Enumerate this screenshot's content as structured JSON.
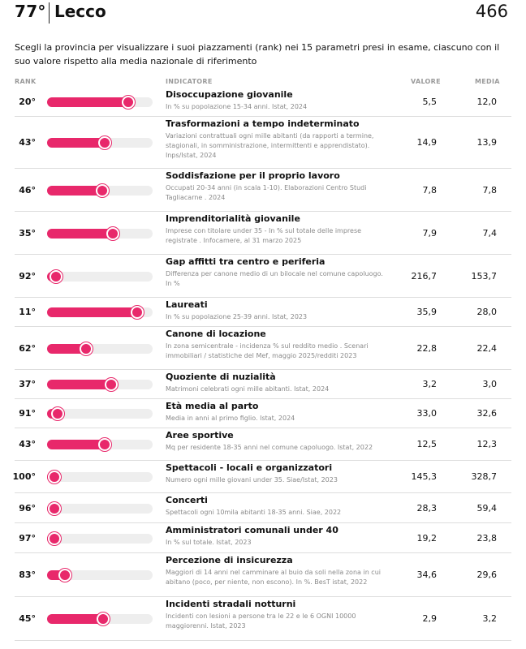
{
  "header": {
    "rank": "77°",
    "city": "Lecco",
    "score": "466"
  },
  "intro": "Scegli la provincia per visualizzare i suoi piazzamenti (rank) nei 15 parametri presi in esame, ciascuno con il suo valore rispetto alla media nazionale di riferimento",
  "columns": {
    "rank": "RANK",
    "indicator": "INDICATORE",
    "value": "VALORE",
    "average": "MEDIA"
  },
  "colors": {
    "accent": "#e8286b",
    "track": "#eeeeee"
  },
  "rows": [
    {
      "rank": "20°",
      "rank_num": 20,
      "title": "Disoccupazione giovanile",
      "desc": "In % su popolazione 15-34 anni. Istat, 2024",
      "value": "5,5",
      "average": "12,0"
    },
    {
      "rank": "43°",
      "rank_num": 43,
      "title": "Trasformazioni a tempo indeterminato",
      "desc": "Variazioni contrattuali ogni mille abitanti (da rapporti a termine, stagionali, in somministrazione, intermittenti e apprendistato). Inps/Istat, 2024",
      "value": "14,9",
      "average": "13,9"
    },
    {
      "rank": "46°",
      "rank_num": 46,
      "title": "Soddisfazione per il proprio lavoro",
      "desc": "Occupati 20-34 anni (in scala 1-10). Elaborazioni Centro Studi Tagliacarne . 2024",
      "value": "7,8",
      "average": "7,8"
    },
    {
      "rank": "35°",
      "rank_num": 35,
      "title": "Imprenditorialità giovanile",
      "desc": "Imprese con titolare under 35 - In % sul totale delle imprese registrate . Infocamere, al 31 marzo 2025",
      "value": "7,9",
      "average": "7,4"
    },
    {
      "rank": "92°",
      "rank_num": 92,
      "title": "Gap affitti tra centro e periferia",
      "desc": "Differenza per canone medio di un bilocale nel comune capoluogo. In %",
      "value": "216,7",
      "average": "153,7"
    },
    {
      "rank": "11°",
      "rank_num": 11,
      "title": "Laureati",
      "desc": "In % su popolazione 25-39 anni. Istat, 2023",
      "value": "35,9",
      "average": "28,0"
    },
    {
      "rank": "62°",
      "rank_num": 62,
      "title": "Canone di locazione",
      "desc": "In zona semicentrale - incidenza % sul reddito medio . Scenari immobiliari / statistiche del Mef, maggio 2025/redditi 2023",
      "value": "22,8",
      "average": "22,4"
    },
    {
      "rank": "37°",
      "rank_num": 37,
      "title": "Quoziente di nuzialità",
      "desc": "Matrimoni celebrati ogni mille abitanti. Istat, 2024",
      "value": "3,2",
      "average": "3,0"
    },
    {
      "rank": "91°",
      "rank_num": 91,
      "title": "Età media al parto",
      "desc": "Media in anni al primo figlio. Istat, 2024",
      "value": "33,0",
      "average": "32,6"
    },
    {
      "rank": "43°",
      "rank_num": 43,
      "title": "Aree sportive",
      "desc": "Mq per residente 18-35 anni nel comune capoluogo. Istat, 2022",
      "value": "12,5",
      "average": "12,3"
    },
    {
      "rank": "100°",
      "rank_num": 100,
      "title": "Spettacoli - locali e organizzatori",
      "desc": "Numero ogni mille giovani under 35. Siae/Istat, 2023",
      "value": "145,3",
      "average": "328,7"
    },
    {
      "rank": "96°",
      "rank_num": 96,
      "title": "Concerti",
      "desc": "Spettacoli ogni 10mila abitanti 18-35 anni. Siae, 2022",
      "value": "28,3",
      "average": "59,4"
    },
    {
      "rank": "97°",
      "rank_num": 97,
      "title": "Amministratori comunali under 40",
      "desc": "In % sul totale. Istat, 2023",
      "value": "19,2",
      "average": "23,8"
    },
    {
      "rank": "83°",
      "rank_num": 83,
      "title": "Percezione di insicurezza",
      "desc": "Maggiori di 14 anni nel camminare al buio da soli nella zona in cui abitano (poco, per niente, non escono). In %. BesT istat, 2022",
      "value": "34,6",
      "average": "29,6"
    },
    {
      "rank": "45°",
      "rank_num": 45,
      "title": "Incidenti stradali notturni",
      "desc": "Incidenti con lesioni a persone tra le 22 e le 6 OGNI 10000 maggiorenni. Istat, 2023",
      "value": "2,9",
      "average": "3,2"
    }
  ]
}
